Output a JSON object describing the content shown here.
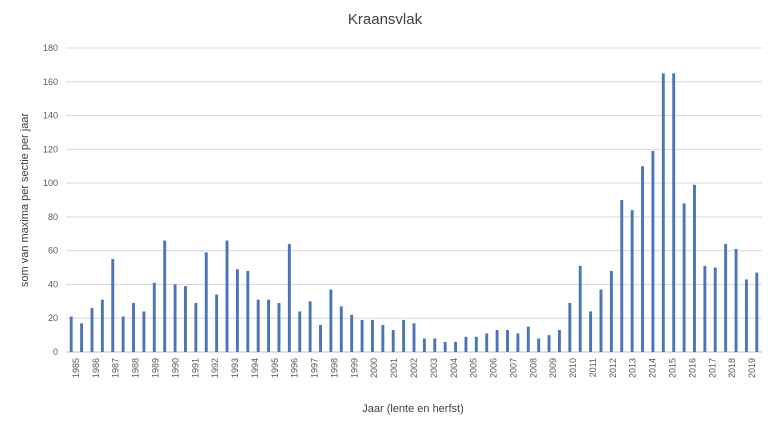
{
  "chart_data": {
    "type": "bar",
    "title": "Kraansvlak",
    "xlabel": "Jaar (lente en herfst)",
    "ylabel": "som van maxima per sectie per jaar",
    "ylim": [
      0,
      180
    ],
    "yticks": [
      0,
      20,
      40,
      60,
      80,
      100,
      120,
      140,
      160,
      180
    ],
    "grid": true,
    "legend": "none",
    "bar_color": "#4a76b8",
    "xtick_labels": [
      "1985",
      "1986",
      "1987",
      "1988",
      "1989",
      "1990",
      "1991",
      "1992",
      "1993",
      "1994",
      "1995",
      "1996",
      "1997",
      "1998",
      "1999",
      "2000",
      "2001",
      "2002",
      "2003",
      "2004",
      "2005",
      "2006",
      "2007",
      "2008",
      "2009",
      "2010",
      "2011",
      "2012",
      "2013",
      "2014",
      "2015",
      "2016",
      "2017",
      "2018",
      "2019"
    ],
    "values": [
      21,
      17,
      26,
      31,
      55,
      21,
      29,
      24,
      41,
      66,
      40,
      39,
      29,
      59,
      34,
      66,
      49,
      48,
      31,
      31,
      29,
      64,
      24,
      30,
      16,
      37,
      27,
      22,
      19,
      19,
      16,
      13,
      19,
      17,
      8,
      8,
      6,
      6,
      9,
      9,
      11,
      13,
      13,
      11,
      15,
      8,
      10,
      13,
      29,
      51,
      24,
      37,
      48,
      90,
      84,
      110,
      119,
      165,
      165,
      88,
      99,
      51,
      50,
      64,
      61,
      43,
      47
    ]
  }
}
